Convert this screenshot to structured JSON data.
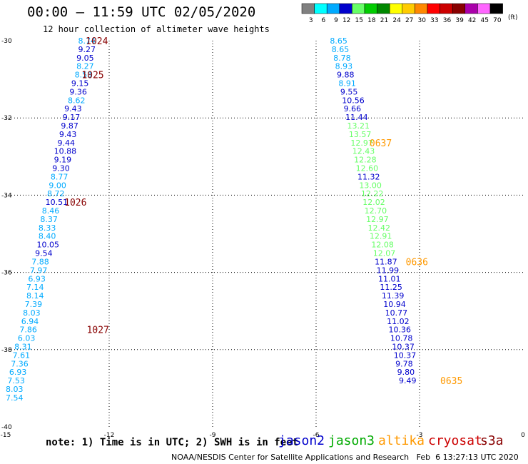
{
  "header": {
    "title": "00:00 – 11:59 UTC 02/05/2020",
    "subtitle": "12 hour collection of altimeter wave heights"
  },
  "legend_scale": {
    "unit": "(ft)",
    "entries": [
      {
        "label": "3",
        "color": "#808080"
      },
      {
        "label": "6",
        "color": "#00ffff"
      },
      {
        "label": "9",
        "color": "#00aaff"
      },
      {
        "label": "12",
        "color": "#0000cc"
      },
      {
        "label": "15",
        "color": "#66ff66"
      },
      {
        "label": "18",
        "color": "#00cc00"
      },
      {
        "label": "21",
        "color": "#008800"
      },
      {
        "label": "24",
        "color": "#ffff00"
      },
      {
        "label": "27",
        "color": "#ffcc00"
      },
      {
        "label": "30",
        "color": "#ff8800"
      },
      {
        "label": "33",
        "color": "#ff0000"
      },
      {
        "label": "36",
        "color": "#cc0000"
      },
      {
        "label": "39",
        "color": "#880000"
      },
      {
        "label": "42",
        "color": "#aa00aa"
      },
      {
        "label": "45",
        "color": "#ff66ff"
      },
      {
        "label": "70",
        "color": "#000000"
      }
    ]
  },
  "footer": {
    "note": "note: 1) Time is in UTC; 2) SWH is in feet",
    "satellites": [
      {
        "name": "jason2",
        "color": "#0000cc"
      },
      {
        "name": "jason3",
        "color": "#00aa00"
      },
      {
        "name": "altika",
        "color": "#ff9900"
      },
      {
        "name": "cryosat",
        "color": "#cc0000"
      },
      {
        "name": "s3a",
        "color": "#880000"
      }
    ],
    "credit": "NOAA/NESDIS Center for Satellite Applications and Research   Feb  6 13:27:13 UTC 2020"
  },
  "chart_data": {
    "type": "scatter",
    "xlim": [
      -15,
      0
    ],
    "ylim": [
      -40,
      -30
    ],
    "x_ticks": [
      "-15",
      "-12",
      "-9",
      "-6",
      "-3",
      "0"
    ],
    "y_ticks": [
      "-30",
      "-32",
      "-34",
      "-36",
      "-38",
      "-40"
    ],
    "grid": true,
    "series": [
      {
        "points": [
          {
            "x": -12.9,
            "y": -30.0,
            "v": "8.74",
            "c": "#00aaff"
          },
          {
            "x": -12.9,
            "y": -30.22,
            "v": "9.27",
            "c": "#0000cc"
          },
          {
            "x": -12.95,
            "y": -30.44,
            "v": "9.05",
            "c": "#0000cc"
          },
          {
            "x": -12.95,
            "y": -30.66,
            "v": "8.27",
            "c": "#00aaff"
          },
          {
            "x": -13.0,
            "y": -30.88,
            "v": "8.53",
            "c": "#00aaff"
          },
          {
            "x": -13.1,
            "y": -31.1,
            "v": "9.15",
            "c": "#0000cc"
          },
          {
            "x": -13.15,
            "y": -31.32,
            "v": "9.36",
            "c": "#0000cc"
          },
          {
            "x": -13.2,
            "y": -31.54,
            "v": "8.62",
            "c": "#00aaff"
          },
          {
            "x": -13.3,
            "y": -31.76,
            "v": "9.43",
            "c": "#0000cc"
          },
          {
            "x": -13.35,
            "y": -31.98,
            "v": "9.17",
            "c": "#0000cc"
          },
          {
            "x": -13.4,
            "y": -32.2,
            "v": "9.87",
            "c": "#0000cc"
          },
          {
            "x": -13.45,
            "y": -32.42,
            "v": "9.43",
            "c": "#0000cc"
          },
          {
            "x": -13.5,
            "y": -32.64,
            "v": "9.44",
            "c": "#0000cc"
          },
          {
            "x": -13.6,
            "y": -32.86,
            "v": "10.88",
            "c": "#0000cc"
          },
          {
            "x": -13.6,
            "y": -33.08,
            "v": "9.19",
            "c": "#0000cc"
          },
          {
            "x": -13.65,
            "y": -33.3,
            "v": "9.30",
            "c": "#0000cc"
          },
          {
            "x": -13.7,
            "y": -33.52,
            "v": "8.77",
            "c": "#00aaff"
          },
          {
            "x": -13.75,
            "y": -33.74,
            "v": "9.00",
            "c": "#00aaff"
          },
          {
            "x": -13.8,
            "y": -33.96,
            "v": "8.72",
            "c": "#00aaff"
          },
          {
            "x": -13.85,
            "y": -34.18,
            "v": "10.51",
            "c": "#0000cc"
          },
          {
            "x": -13.95,
            "y": -34.4,
            "v": "8.46",
            "c": "#00aaff"
          },
          {
            "x": -14.0,
            "y": -34.62,
            "v": "8.37",
            "c": "#00aaff"
          },
          {
            "x": -14.05,
            "y": -34.84,
            "v": "8.33",
            "c": "#00aaff"
          },
          {
            "x": -14.05,
            "y": -35.06,
            "v": "8.40",
            "c": "#00aaff"
          },
          {
            "x": -14.1,
            "y": -35.28,
            "v": "10.05",
            "c": "#0000cc"
          },
          {
            "x": -14.15,
            "y": -35.5,
            "v": "9.54",
            "c": "#0000cc"
          },
          {
            "x": -14.25,
            "y": -35.72,
            "v": "7.88",
            "c": "#00aaff"
          },
          {
            "x": -14.3,
            "y": -35.94,
            "v": "7.97",
            "c": "#00aaff"
          },
          {
            "x": -14.35,
            "y": -36.16,
            "v": "6.93",
            "c": "#00aaff"
          },
          {
            "x": -14.4,
            "y": -36.38,
            "v": "7.14",
            "c": "#00aaff"
          },
          {
            "x": -14.4,
            "y": -36.6,
            "v": "8.14",
            "c": "#00aaff"
          },
          {
            "x": -14.45,
            "y": -36.82,
            "v": "7.39",
            "c": "#00aaff"
          },
          {
            "x": -14.5,
            "y": -37.04,
            "v": "8.03",
            "c": "#00aaff"
          },
          {
            "x": -14.55,
            "y": -37.26,
            "v": "6.94",
            "c": "#00aaff"
          },
          {
            "x": -14.6,
            "y": -37.48,
            "v": "7.86",
            "c": "#00aaff"
          },
          {
            "x": -14.65,
            "y": -37.7,
            "v": "6.03",
            "c": "#00aaff"
          },
          {
            "x": -14.75,
            "y": -37.92,
            "v": "8.31",
            "c": "#00aaff"
          },
          {
            "x": -14.8,
            "y": -38.14,
            "v": "7.61",
            "c": "#00aaff"
          },
          {
            "x": -14.85,
            "y": -38.36,
            "v": "7.36",
            "c": "#00aaff"
          },
          {
            "x": -14.9,
            "y": -38.58,
            "v": "6.93",
            "c": "#00aaff"
          },
          {
            "x": -14.95,
            "y": -38.8,
            "v": "7.53",
            "c": "#00aaff"
          },
          {
            "x": -15.0,
            "y": -39.02,
            "v": "8.03",
            "c": "#00aaff"
          },
          {
            "x": -15.0,
            "y": -39.24,
            "v": "7.54",
            "c": "#00aaff"
          }
        ],
        "track_labels": [
          {
            "text": "1024",
            "x": -12.68,
            "y": -30.0,
            "c": "#880000"
          },
          {
            "text": "1025",
            "x": -12.8,
            "y": -30.88,
            "c": "#880000"
          },
          {
            "text": "1026",
            "x": -13.3,
            "y": -34.18,
            "c": "#880000"
          },
          {
            "text": "1027",
            "x": -12.65,
            "y": -37.48,
            "c": "#880000"
          }
        ]
      },
      {
        "points": [
          {
            "x": -5.6,
            "y": -30.0,
            "v": "8.65",
            "c": "#00aaff"
          },
          {
            "x": -5.55,
            "y": -30.22,
            "v": "8.65",
            "c": "#00aaff"
          },
          {
            "x": -5.5,
            "y": -30.44,
            "v": "8.78",
            "c": "#00aaff"
          },
          {
            "x": -5.45,
            "y": -30.66,
            "v": "8.93",
            "c": "#00aaff"
          },
          {
            "x": -5.4,
            "y": -30.88,
            "v": "9.88",
            "c": "#0000cc"
          },
          {
            "x": -5.35,
            "y": -31.1,
            "v": "8.91",
            "c": "#00aaff"
          },
          {
            "x": -5.3,
            "y": -31.32,
            "v": "9.55",
            "c": "#0000cc"
          },
          {
            "x": -5.25,
            "y": -31.54,
            "v": "10.56",
            "c": "#0000cc"
          },
          {
            "x": -5.2,
            "y": -31.76,
            "v": "9.66",
            "c": "#0000cc"
          },
          {
            "x": -5.15,
            "y": -31.98,
            "v": "11.44",
            "c": "#0000cc"
          },
          {
            "x": -5.1,
            "y": -32.2,
            "v": "13.21",
            "c": "#66ff66"
          },
          {
            "x": -5.05,
            "y": -32.42,
            "v": "13.57",
            "c": "#66ff66"
          },
          {
            "x": -5.0,
            "y": -32.64,
            "v": "12.97",
            "c": "#66ff66"
          },
          {
            "x": -4.95,
            "y": -32.86,
            "v": "12.43",
            "c": "#66ff66"
          },
          {
            "x": -4.9,
            "y": -33.08,
            "v": "12.28",
            "c": "#66ff66"
          },
          {
            "x": -4.85,
            "y": -33.3,
            "v": "12.60",
            "c": "#66ff66"
          },
          {
            "x": -4.8,
            "y": -33.52,
            "v": "11.32",
            "c": "#0000cc"
          },
          {
            "x": -4.75,
            "y": -33.74,
            "v": "13.00",
            "c": "#66ff66"
          },
          {
            "x": -4.7,
            "y": -33.96,
            "v": "12.22",
            "c": "#66ff66"
          },
          {
            "x": -4.65,
            "y": -34.18,
            "v": "12.02",
            "c": "#66ff66"
          },
          {
            "x": -4.6,
            "y": -34.4,
            "v": "12.70",
            "c": "#66ff66"
          },
          {
            "x": -4.55,
            "y": -34.62,
            "v": "12.97",
            "c": "#66ff66"
          },
          {
            "x": -4.5,
            "y": -34.84,
            "v": "12.42",
            "c": "#66ff66"
          },
          {
            "x": -4.45,
            "y": -35.06,
            "v": "12.91",
            "c": "#66ff66"
          },
          {
            "x": -4.4,
            "y": -35.28,
            "v": "12.08",
            "c": "#66ff66"
          },
          {
            "x": -4.35,
            "y": -35.5,
            "v": "12.07",
            "c": "#66ff66"
          },
          {
            "x": -4.3,
            "y": -35.72,
            "v": "11.87",
            "c": "#0000cc"
          },
          {
            "x": -4.25,
            "y": -35.94,
            "v": "11.99",
            "c": "#0000cc"
          },
          {
            "x": -4.2,
            "y": -36.16,
            "v": "11.01",
            "c": "#0000cc"
          },
          {
            "x": -4.15,
            "y": -36.38,
            "v": "11.25",
            "c": "#0000cc"
          },
          {
            "x": -4.1,
            "y": -36.6,
            "v": "11.39",
            "c": "#0000cc"
          },
          {
            "x": -4.05,
            "y": -36.82,
            "v": "10.94",
            "c": "#0000cc"
          },
          {
            "x": -4.0,
            "y": -37.04,
            "v": "10.77",
            "c": "#0000cc"
          },
          {
            "x": -3.95,
            "y": -37.26,
            "v": "11.02",
            "c": "#0000cc"
          },
          {
            "x": -3.9,
            "y": -37.48,
            "v": "10.36",
            "c": "#0000cc"
          },
          {
            "x": -3.85,
            "y": -37.7,
            "v": "10.78",
            "c": "#0000cc"
          },
          {
            "x": -3.8,
            "y": -37.92,
            "v": "10.37",
            "c": "#0000cc"
          },
          {
            "x": -3.75,
            "y": -38.14,
            "v": "10.37",
            "c": "#0000cc"
          },
          {
            "x": -3.7,
            "y": -38.36,
            "v": "9.78",
            "c": "#0000cc"
          },
          {
            "x": -3.65,
            "y": -38.58,
            "v": "9.80",
            "c": "#0000cc"
          },
          {
            "x": -3.6,
            "y": -38.8,
            "v": "9.49",
            "c": "#0000cc"
          }
        ],
        "track_labels": [
          {
            "text": "0637",
            "x": -4.45,
            "y": -32.64,
            "c": "#ff9900"
          },
          {
            "text": "0636",
            "x": -3.4,
            "y": -35.72,
            "c": "#ff9900"
          },
          {
            "text": "0635",
            "x": -2.4,
            "y": -38.8,
            "c": "#ff9900"
          }
        ]
      }
    ]
  }
}
